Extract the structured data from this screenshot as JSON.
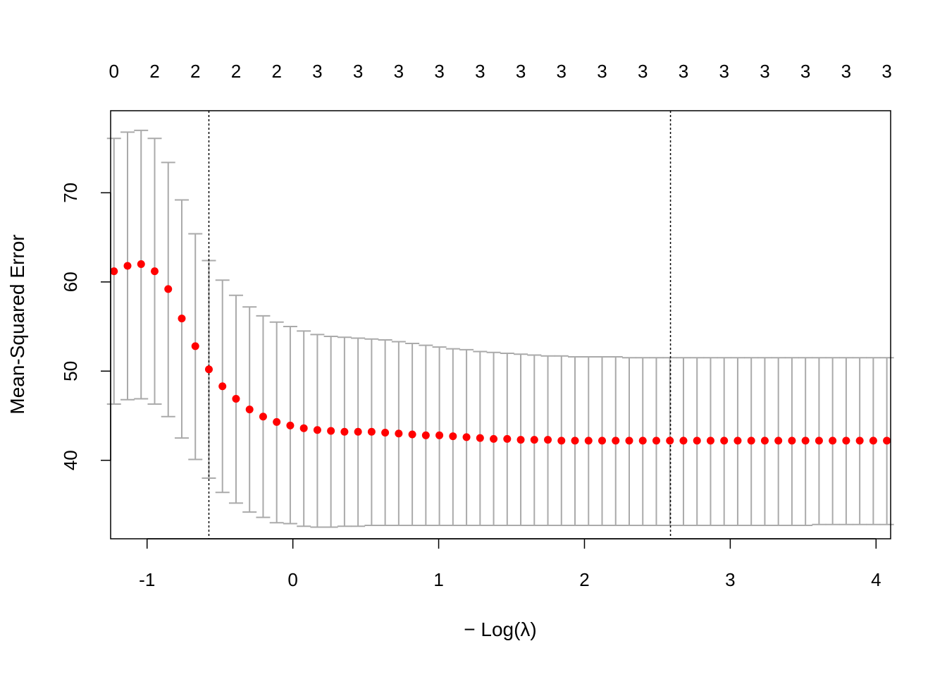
{
  "chart_data": {
    "type": "scatter",
    "title": "",
    "xlabel": "− Log(λ)",
    "ylabel": "Mean-Squared Error",
    "xlim": [
      -1.25,
      4.1
    ],
    "ylim": [
      31.2,
      79.2
    ],
    "x_ticks": [
      -1,
      0,
      1,
      2,
      3,
      4
    ],
    "x_tick_labels": [
      "-1",
      "0",
      "1",
      "2",
      "3",
      "4"
    ],
    "y_ticks": [
      40,
      50,
      60,
      70
    ],
    "y_tick_labels": [
      "40",
      "50",
      "60",
      "70"
    ],
    "top_axis_labels": [
      "0",
      "2",
      "2",
      "2",
      "2",
      "3",
      "3",
      "3",
      "3",
      "3",
      "3",
      "3",
      "3",
      "3",
      "3",
      "3",
      "3",
      "3",
      "3",
      "3"
    ],
    "top_axis_x": [
      -1.227,
      -0.948,
      -0.669,
      -0.39,
      -0.111,
      0.168,
      0.447,
      0.726,
      1.005,
      1.284,
      1.563,
      1.842,
      2.121,
      2.4,
      2.679,
      2.958,
      3.237,
      3.516,
      3.795,
      4.074
    ],
    "vlines_x": [
      -0.576,
      2.59
    ],
    "vline_style": "dotted",
    "grid": false,
    "point_color": "#ff0000",
    "errorbar_color": "#aaaaaa",
    "series": [
      {
        "x": [
          -1.227,
          -1.134,
          -1.041,
          -0.948,
          -0.855,
          -0.762,
          -0.669,
          -0.576,
          -0.483,
          -0.39,
          -0.297,
          -0.204,
          -0.111,
          -0.018,
          0.075,
          0.168,
          0.261,
          0.354,
          0.447,
          0.54,
          0.633,
          0.726,
          0.819,
          0.912,
          1.005,
          1.098,
          1.191,
          1.284,
          1.377,
          1.47,
          1.563,
          1.656,
          1.749,
          1.842,
          1.935,
          2.028,
          2.121,
          2.214,
          2.307,
          2.4,
          2.493,
          2.586,
          2.679,
          2.772,
          2.865,
          2.958,
          3.051,
          3.144,
          3.237,
          3.33,
          3.423,
          3.516,
          3.609,
          3.702,
          3.795,
          3.888,
          3.981,
          4.074
        ],
        "mean": [
          61.2,
          61.8,
          62.0,
          61.2,
          59.2,
          55.9,
          52.8,
          50.2,
          48.3,
          46.9,
          45.7,
          44.9,
          44.3,
          43.9,
          43.6,
          43.4,
          43.3,
          43.2,
          43.2,
          43.2,
          43.1,
          43.0,
          42.9,
          42.8,
          42.8,
          42.7,
          42.6,
          42.5,
          42.4,
          42.4,
          42.3,
          42.3,
          42.3,
          42.2,
          42.2,
          42.2,
          42.2,
          42.2,
          42.2,
          42.2,
          42.2,
          42.2,
          42.2,
          42.2,
          42.2,
          42.2,
          42.2,
          42.2,
          42.2,
          42.2,
          42.2,
          42.2,
          42.2,
          42.2,
          42.2,
          42.2,
          42.2,
          42.2
        ],
        "upper": [
          76.1,
          76.8,
          77.0,
          76.1,
          73.4,
          69.2,
          65.4,
          62.4,
          60.2,
          58.5,
          57.2,
          56.2,
          55.5,
          55.0,
          54.5,
          54.1,
          53.9,
          53.8,
          53.7,
          53.6,
          53.5,
          53.3,
          53.1,
          52.9,
          52.7,
          52.5,
          52.4,
          52.2,
          52.1,
          52.0,
          51.9,
          51.8,
          51.7,
          51.7,
          51.6,
          51.6,
          51.6,
          51.6,
          51.5,
          51.5,
          51.5,
          51.5,
          51.5,
          51.5,
          51.5,
          51.5,
          51.5,
          51.5,
          51.5,
          51.5,
          51.5,
          51.5,
          51.5,
          51.5,
          51.5,
          51.5,
          51.5,
          51.5
        ],
        "lower": [
          46.3,
          46.8,
          46.9,
          46.3,
          44.9,
          42.5,
          40.1,
          38.0,
          36.4,
          35.2,
          34.2,
          33.6,
          33.0,
          32.9,
          32.6,
          32.5,
          32.5,
          32.6,
          32.6,
          32.7,
          32.7,
          32.7,
          32.7,
          32.7,
          32.7,
          32.7,
          32.7,
          32.7,
          32.7,
          32.7,
          32.7,
          32.7,
          32.7,
          32.7,
          32.7,
          32.7,
          32.7,
          32.7,
          32.7,
          32.7,
          32.7,
          32.7,
          32.7,
          32.7,
          32.7,
          32.7,
          32.7,
          32.7,
          32.7,
          32.7,
          32.7,
          32.7,
          32.8,
          32.8,
          32.8,
          32.8,
          32.8,
          32.8
        ]
      }
    ]
  }
}
